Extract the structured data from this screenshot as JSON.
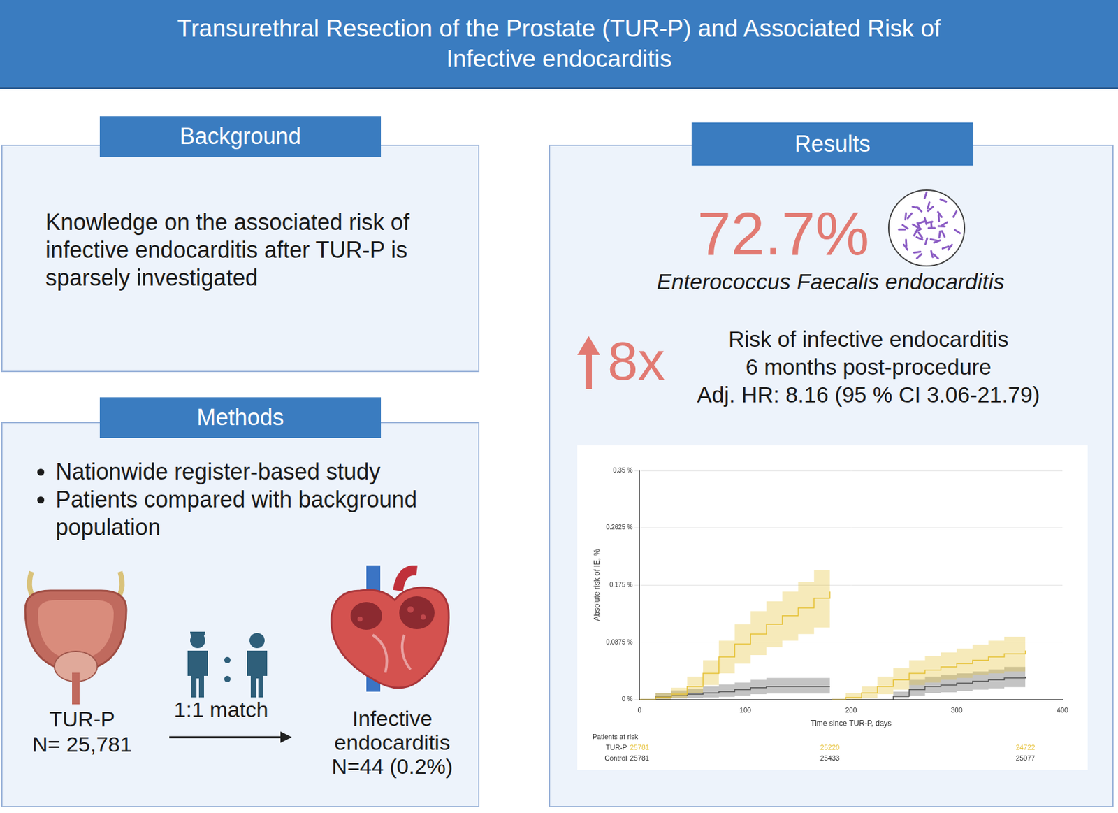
{
  "title": [
    "Transurethral Resection of the Prostate (TUR-P) and Associated Risk of",
    "Infective endocarditis"
  ],
  "background": {
    "heading": "Background",
    "text": "Knowledge on the associated risk of infective endocarditis after TUR-P is sparsely investigated"
  },
  "methods": {
    "heading": "Methods",
    "bullets": [
      "Nationwide register-based study",
      "Patients compared with  background population"
    ],
    "tur_p": [
      "TUR-P",
      "N= 25,781"
    ],
    "match": "1:1 match",
    "outcome": [
      "Infective",
      "endocarditis",
      "N=44 (0.2%)"
    ]
  },
  "results": {
    "heading": "Results",
    "percent": "72.7%",
    "organism": "Enterococcus Faecalis endocarditis",
    "fold": "8x",
    "risk_lines": [
      "Risk of infective endocarditis",
      "6 months post-procedure",
      "Adj. HR: 8.16 (95 % CI 3.06-21.79)"
    ]
  },
  "chart_data": {
    "type": "line",
    "x_label": "Time since TUR-P, days",
    "y_label": "Absolute risk of IE, %",
    "xlim": [
      0,
      400
    ],
    "xticks": [
      0,
      100,
      200,
      300,
      400
    ],
    "ylim": [
      0,
      0.35
    ],
    "yticks": [
      {
        "value": 0,
        "label": "0 %"
      },
      {
        "value": 0.0875,
        "label": "0.0875 %"
      },
      {
        "value": 0.175,
        "label": "0.175 %"
      },
      {
        "value": 0.2625,
        "label": "0.2625 %"
      },
      {
        "value": 0.35,
        "label": "0.35 %"
      }
    ],
    "grid": "y",
    "x": [
      0,
      15,
      30,
      45,
      60,
      75,
      90,
      105,
      120,
      135,
      150,
      165,
      180,
      181,
      182,
      195,
      210,
      225,
      240,
      255,
      270,
      285,
      300,
      315,
      330,
      345,
      365
    ],
    "series": [
      {
        "name": "TUR-P",
        "color": "#e6c23a",
        "line_style": "step",
        "values": [
          0,
          0.003,
          0.008,
          0.02,
          0.04,
          0.065,
          0.085,
          0.1,
          0.115,
          0.128,
          0.14,
          0.155,
          0.165,
          null,
          0,
          0.003,
          0.01,
          0.02,
          0.03,
          0.04,
          0.045,
          0.05,
          0.055,
          0.06,
          0.065,
          0.07,
          0.075
        ],
        "lower": [
          0,
          0,
          0.002,
          0.01,
          0.022,
          0.04,
          0.055,
          0.068,
          0.08,
          0.09,
          0.1,
          0.11,
          0.118,
          null,
          0,
          0,
          0.002,
          0.008,
          0.015,
          0.022,
          0.026,
          0.03,
          0.033,
          0.037,
          0.04,
          0.043,
          0.047
        ],
        "upper": [
          0,
          0.01,
          0.018,
          0.035,
          0.06,
          0.09,
          0.115,
          0.135,
          0.15,
          0.165,
          0.18,
          0.198,
          0.21,
          null,
          0,
          0.01,
          0.02,
          0.035,
          0.048,
          0.06,
          0.066,
          0.072,
          0.078,
          0.084,
          0.09,
          0.096,
          0.105
        ]
      },
      {
        "name": "Control",
        "color": "#555555",
        "line_style": "step",
        "values": [
          0,
          0.004,
          0.006,
          0.008,
          0.01,
          0.012,
          0.015,
          0.018,
          0.02,
          0.02,
          0.02,
          0.02,
          0.02,
          null,
          0,
          0,
          0,
          0,
          0.005,
          0.015,
          0.02,
          0.022,
          0.025,
          0.028,
          0.03,
          0.033,
          0.035
        ],
        "lower": [
          0,
          0,
          0.001,
          0.002,
          0.003,
          0.004,
          0.006,
          0.008,
          0.009,
          0.009,
          0.009,
          0.009,
          0.009,
          null,
          0,
          0,
          0,
          0,
          0.001,
          0.006,
          0.01,
          0.011,
          0.013,
          0.015,
          0.017,
          0.019,
          0.02
        ],
        "upper": [
          0,
          0.01,
          0.014,
          0.016,
          0.02,
          0.023,
          0.026,
          0.03,
          0.033,
          0.033,
          0.033,
          0.033,
          0.033,
          null,
          0,
          0,
          0,
          0,
          0.012,
          0.03,
          0.035,
          0.037,
          0.04,
          0.043,
          0.046,
          0.05,
          0.053
        ]
      }
    ],
    "at_risk": {
      "title": "Patients at risk",
      "x": [
        0,
        180,
        365
      ],
      "rows": [
        {
          "name": "TUR-P",
          "color": "#e6c23a",
          "values": [
            25781,
            25220,
            24722
          ]
        },
        {
          "name": "Control",
          "color": "#333333",
          "values": [
            25781,
            25433,
            25077
          ]
        }
      ]
    }
  }
}
